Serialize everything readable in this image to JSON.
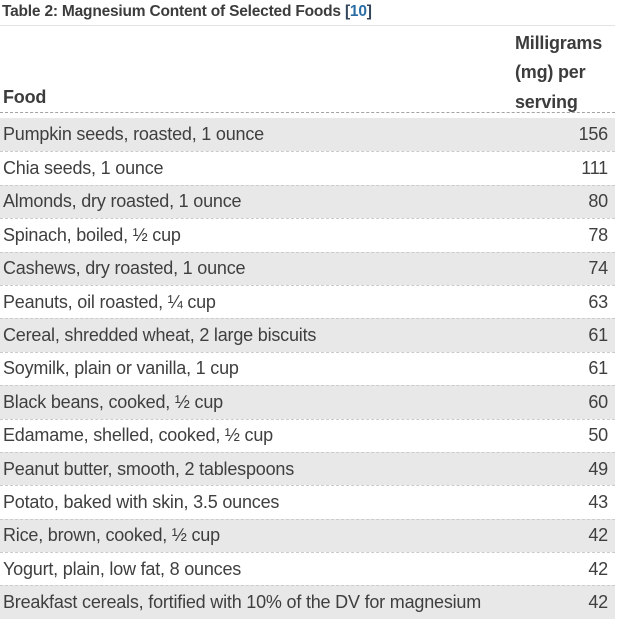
{
  "title": {
    "text": "Table 2: Magnesium Content of Selected Foods ",
    "bracket_open": "[",
    "reference": "10",
    "bracket_close": "]"
  },
  "table": {
    "food_header": "Food",
    "amount_header": "Milligrams (mg) per serving",
    "rows": [
      {
        "food": "Pumpkin seeds, roasted, 1 ounce",
        "mg": "156"
      },
      {
        "food": "Chia seeds, 1 ounce",
        "mg": "111"
      },
      {
        "food": "Almonds, dry roasted, 1 ounce",
        "mg": "80"
      },
      {
        "food": "Spinach, boiled, ½ cup",
        "mg": "78"
      },
      {
        "food": "Cashews, dry roasted, 1 ounce",
        "mg": "74"
      },
      {
        "food": "Peanuts, oil roasted, ¼ cup",
        "mg": "63"
      },
      {
        "food": "Cereal, shredded wheat, 2 large biscuits",
        "mg": "61"
      },
      {
        "food": "Soymilk, plain or vanilla, 1 cup",
        "mg": "61"
      },
      {
        "food": "Black beans, cooked, ½ cup",
        "mg": "60"
      },
      {
        "food": "Edamame, shelled, cooked, ½ cup",
        "mg": "50"
      },
      {
        "food": "Peanut butter, smooth, 2 tablespoons",
        "mg": "49"
      },
      {
        "food": "Potato, baked with skin, 3.5 ounces",
        "mg": "43"
      },
      {
        "food": "Rice, brown, cooked, ½ cup",
        "mg": "42"
      },
      {
        "food": "Yogurt, plain, low fat, 8 ounces",
        "mg": "42"
      },
      {
        "food": "Breakfast cereals, fortified with 10% of the DV for magnesium",
        "mg": "42"
      }
    ]
  },
  "colors": {
    "link_blue": "#2a6da5",
    "alt_row_background": "#e8e8e8",
    "text": "#3f3f3f"
  }
}
